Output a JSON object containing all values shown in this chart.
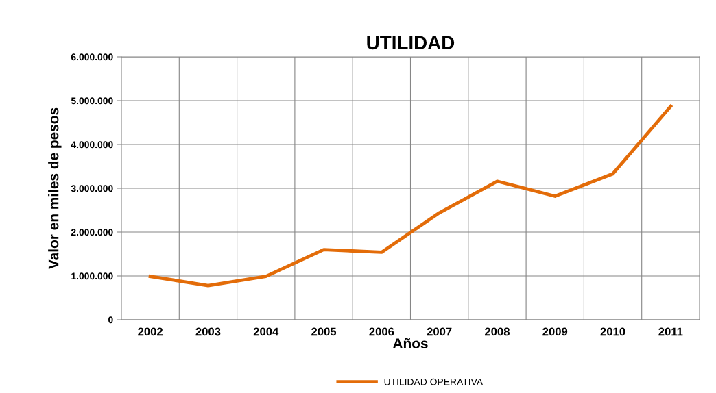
{
  "chart_data": {
    "type": "line",
    "title": "UTILIDAD",
    "xlabel": "Años",
    "ylabel": "Valor en miles de pesos",
    "categories": [
      "2002",
      "2003",
      "2004",
      "2005",
      "2006",
      "2007",
      "2008",
      "2009",
      "2010",
      "2011"
    ],
    "series": [
      {
        "name": "UTILIDAD OPERATIVA",
        "color": "#e36c09",
        "values": [
          990000,
          780000,
          990000,
          1600000,
          1540000,
          2440000,
          3160000,
          2820000,
          3330000,
          4870000
        ]
      }
    ],
    "ylim": [
      0,
      6000000
    ],
    "yticks": [
      {
        "value": 0,
        "label": "0"
      },
      {
        "value": 1000000,
        "label": "1.000.000"
      },
      {
        "value": 2000000,
        "label": "2.000.000"
      },
      {
        "value": 3000000,
        "label": "3.000.000"
      },
      {
        "value": 4000000,
        "label": "4.000.000"
      },
      {
        "value": 5000000,
        "label": "5.000.000"
      },
      {
        "value": 6000000,
        "label": "6.000.000"
      }
    ],
    "grid": true,
    "legend": "bottom",
    "marker": "none",
    "line_style": "solid"
  }
}
